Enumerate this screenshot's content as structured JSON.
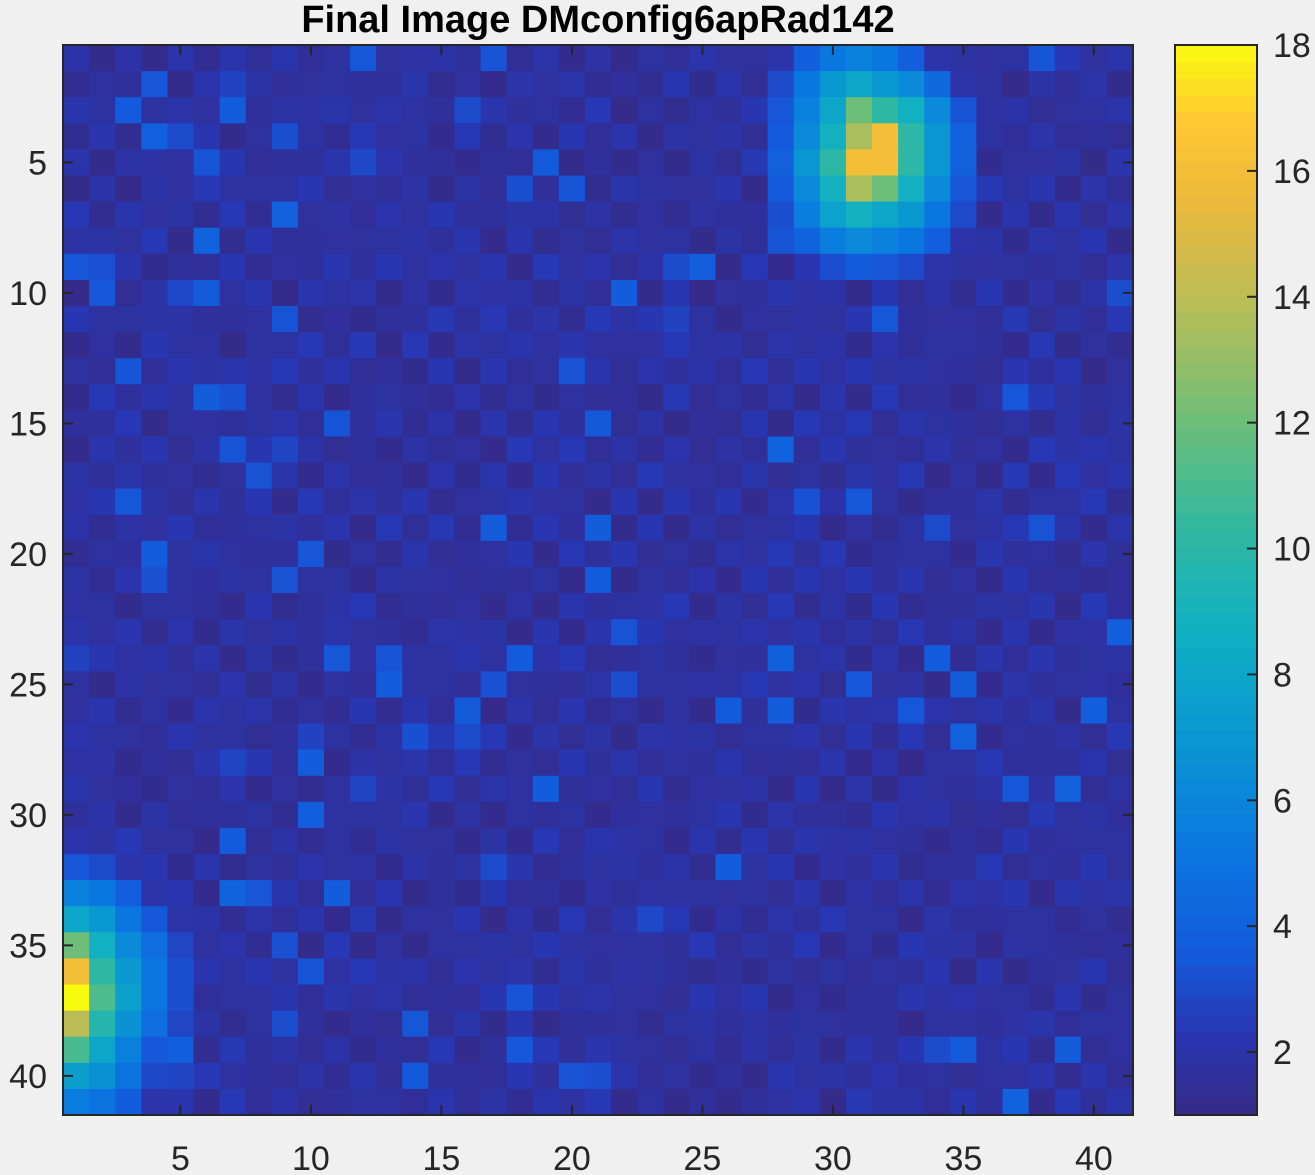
{
  "chart_data": {
    "type": "heatmap",
    "title": "Final Image DMconfig6apRad142",
    "xlabel": "",
    "ylabel": "",
    "rows": 41,
    "cols": 41,
    "x_ticks": [
      5,
      10,
      15,
      20,
      25,
      30,
      35,
      40
    ],
    "y_ticks": [
      5,
      10,
      15,
      20,
      25,
      30,
      35,
      40
    ],
    "y_direction": "reverse",
    "colormap": "parula",
    "clim": [
      1,
      18
    ],
    "colorbar_ticks": [
      2,
      4,
      6,
      8,
      10,
      12,
      14,
      16,
      18
    ],
    "base_value": 2,
    "hotspots": [
      {
        "row": 3,
        "col": 31,
        "value": 12
      },
      {
        "row": 4,
        "col": 31,
        "value": 13.5
      },
      {
        "row": 4,
        "col": 32,
        "value": 16
      },
      {
        "row": 5,
        "col": 31,
        "value": 16
      },
      {
        "row": 5,
        "col": 32,
        "value": 16
      },
      {
        "row": 6,
        "col": 31,
        "value": 13.5
      },
      {
        "row": 6,
        "col": 32,
        "value": 12
      },
      {
        "row": 37,
        "col": 1,
        "value": 18
      },
      {
        "row": 36,
        "col": 1,
        "value": 16
      },
      {
        "row": 38,
        "col": 1,
        "value": 14
      },
      {
        "row": 35,
        "col": 1,
        "value": 12
      },
      {
        "row": 39,
        "col": 1,
        "value": 11
      },
      {
        "row": 37,
        "col": 2,
        "value": 10
      },
      {
        "row": 36,
        "col": 2,
        "value": 10
      }
    ]
  },
  "colors": {
    "low": "#352a87",
    "mid": "#0fadcc",
    "high": "#f9fb0e",
    "figure_background": "#f0f0f0",
    "axis_color": "#262626"
  }
}
